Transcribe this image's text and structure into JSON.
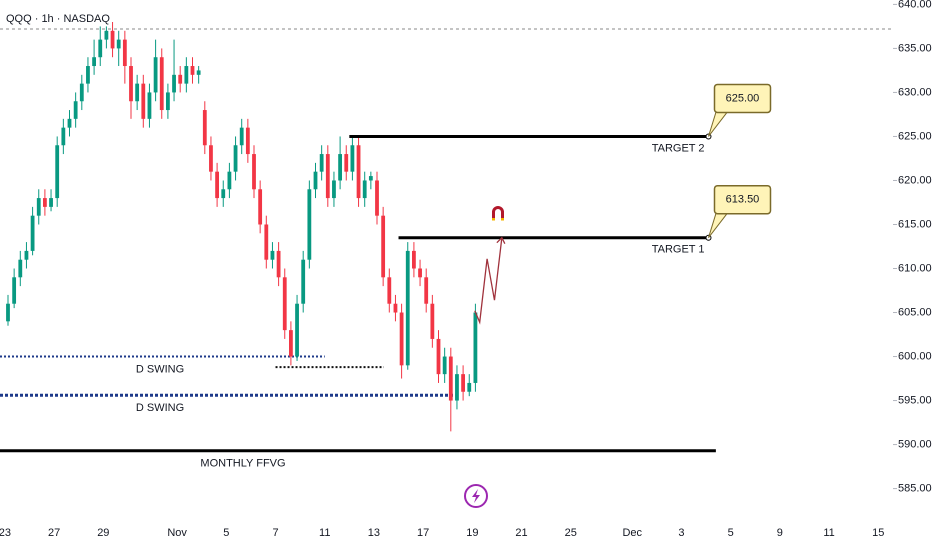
{
  "chart_data": {
    "type": "candlestick",
    "title": "QQQ · 1h · NASDAQ",
    "up_color": "#089981",
    "down_color": "#f23645",
    "xlim": [
      -0.2,
      36.1
    ],
    "ylim": [
      582,
      640.5
    ],
    "xticks": [
      {
        "value": 0,
        "label": "23"
      },
      {
        "value": 2,
        "label": "27"
      },
      {
        "value": 4,
        "label": "29"
      },
      {
        "value": 7,
        "label": "Nov"
      },
      {
        "value": 9,
        "label": "5"
      },
      {
        "value": 11,
        "label": "7"
      },
      {
        "value": 13,
        "label": "11"
      },
      {
        "value": 15,
        "label": "13"
      },
      {
        "value": 17,
        "label": "17"
      },
      {
        "value": 19,
        "label": "19"
      },
      {
        "value": 21,
        "label": "21"
      },
      {
        "value": 23,
        "label": "25"
      },
      {
        "value": 25.5,
        "label": "Dec"
      },
      {
        "value": 27.5,
        "label": "3"
      },
      {
        "value": 29.5,
        "label": "5"
      },
      {
        "value": 31.5,
        "label": "9"
      },
      {
        "value": 33.5,
        "label": "11"
      },
      {
        "value": 35.5,
        "label": "15"
      }
    ],
    "yticks": [
      {
        "value": 640,
        "label": "640.00"
      },
      {
        "value": 635,
        "label": "635.00"
      },
      {
        "value": 630,
        "label": "630.00"
      },
      {
        "value": 625,
        "label": "625.00"
      },
      {
        "value": 620,
        "label": "620.00"
      },
      {
        "value": 615,
        "label": "615.00"
      },
      {
        "value": 610,
        "label": "610.00"
      },
      {
        "value": 605,
        "label": "605.00"
      },
      {
        "value": 600,
        "label": "600.00"
      },
      {
        "value": 595,
        "label": "595.00"
      },
      {
        "value": 590,
        "label": "590.00"
      },
      {
        "value": 585,
        "label": "585.00"
      }
    ],
    "x": [
      0.125,
      0.375,
      0.625,
      0.875,
      1.125,
      1.375,
      1.625,
      1.875,
      2.125,
      2.375,
      2.625,
      2.875,
      3.125,
      3.375,
      3.625,
      3.875,
      4.125,
      4.375,
      4.625,
      4.875,
      5.125,
      5.375,
      5.625,
      5.875,
      6.125,
      6.375,
      6.625,
      6.875,
      7.125,
      7.375,
      7.625,
      7.875,
      8.125,
      8.375,
      8.625,
      8.875,
      9.125,
      9.375,
      9.625,
      9.875,
      10.125,
      10.375,
      10.625,
      10.875,
      11.125,
      11.375,
      11.625,
      11.875,
      12.125,
      12.375,
      12.625,
      12.875,
      13.125,
      13.375,
      13.625,
      13.875,
      14.125,
      14.375,
      14.625,
      14.875,
      15.125,
      15.375,
      15.625,
      15.875,
      16.125,
      16.375,
      16.625,
      16.875,
      17.125,
      17.375,
      17.625,
      17.875,
      18.125,
      18.375,
      18.625,
      18.875,
      19.125
    ],
    "open": [
      604,
      606,
      609,
      611,
      612,
      616,
      618,
      617,
      618,
      624,
      626,
      627,
      629,
      631,
      633,
      634,
      636,
      637,
      635,
      636,
      633,
      629,
      631,
      627,
      630,
      634,
      628,
      630,
      632,
      631,
      633,
      632,
      628,
      624,
      621,
      618,
      619,
      621,
      624,
      626,
      623,
      619,
      615,
      611,
      612,
      609,
      603,
      600,
      606,
      611,
      619,
      621,
      623,
      618,
      620,
      623,
      621,
      624,
      618,
      620,
      620,
      616,
      609,
      606,
      605,
      599,
      612,
      610,
      609,
      606,
      602,
      598,
      600,
      595,
      598,
      596,
      597
    ],
    "high": [
      607,
      610,
      612,
      613,
      617,
      619,
      619,
      619,
      625,
      627,
      628,
      630,
      632,
      634,
      636,
      637.5,
      637.5,
      638,
      637,
      637,
      634,
      632,
      632,
      631,
      636,
      635,
      631,
      636,
      633,
      634,
      634,
      633,
      629,
      625,
      622,
      620,
      622,
      625,
      627,
      627,
      624,
      620,
      616,
      613,
      613,
      610,
      604,
      607,
      612,
      620,
      622,
      624,
      624,
      621,
      625,
      624,
      625,
      625,
      621,
      621,
      621,
      617,
      610,
      607,
      606,
      613,
      613,
      611,
      610,
      607,
      603,
      601,
      601,
      599,
      599,
      598,
      606
    ],
    "low": [
      603.5,
      605.5,
      608,
      610,
      611.5,
      615,
      616,
      616.5,
      617,
      623,
      625,
      626,
      628,
      630,
      632,
      633,
      635,
      634,
      633,
      631,
      627,
      628,
      626,
      626,
      629,
      627,
      627,
      629,
      630,
      630,
      631,
      631,
      623,
      620,
      617,
      617,
      618,
      620,
      623,
      622,
      618,
      614,
      610,
      610,
      608,
      602,
      599,
      599.5,
      605,
      610,
      618,
      620,
      617,
      617,
      619,
      620,
      620,
      617,
      617,
      619,
      615,
      608,
      605,
      604,
      597.5,
      598.5,
      609,
      608,
      605,
      601,
      597,
      597,
      591.5,
      594,
      595,
      595.5,
      596
    ],
    "close": [
      606,
      609,
      611,
      612,
      616,
      618,
      617,
      618,
      624,
      626,
      627,
      629,
      631,
      633,
      634,
      636,
      637,
      635,
      636,
      633,
      629,
      631,
      627,
      630,
      634,
      628,
      630,
      632,
      631,
      633,
      632,
      632.5,
      624,
      621,
      618,
      619,
      621,
      624,
      626,
      623,
      619,
      615,
      611,
      612,
      609,
      603,
      600,
      606,
      611,
      619,
      621,
      623,
      618,
      620,
      623,
      621,
      624,
      618,
      620,
      620.5,
      616,
      609,
      606,
      605,
      599,
      612,
      610,
      609,
      606,
      602,
      598,
      600,
      595,
      598,
      596,
      597,
      605
    ],
    "reference_line": {
      "value": 637.2
    },
    "levels": [
      {
        "label": "TARGET 2",
        "value": 625,
        "value_label": "625.00",
        "x_start": 14.0,
        "x_end": 28.6
      },
      {
        "label": "TARGET 1",
        "value": 613.5,
        "value_label": "613.50",
        "x_start": 16.0,
        "x_end": 28.6
      }
    ],
    "zones": [
      {
        "label": "D SWING",
        "value": 600,
        "x_start": -0.2,
        "x_end": 13.0,
        "style": "dotted-blue"
      },
      {
        "value": 598.8,
        "x_start": 11.0,
        "x_end": 15.4,
        "style": "dotted-black"
      },
      {
        "label": "D SWING",
        "value": 595.6,
        "x_start": -0.2,
        "x_end": 18.3,
        "style": "dotted-blue-bold"
      },
      {
        "label": "MONTHLY FFVG",
        "value": 589.3,
        "x_start": -0.2,
        "x_end": 28.9,
        "style": "solid"
      }
    ],
    "projection": {
      "x": [
        19.1,
        19.3,
        19.6,
        19.9,
        20.2
      ],
      "y": [
        605.2,
        603.9,
        611.1,
        606.4,
        613.5
      ],
      "color": "#a0323c"
    }
  }
}
